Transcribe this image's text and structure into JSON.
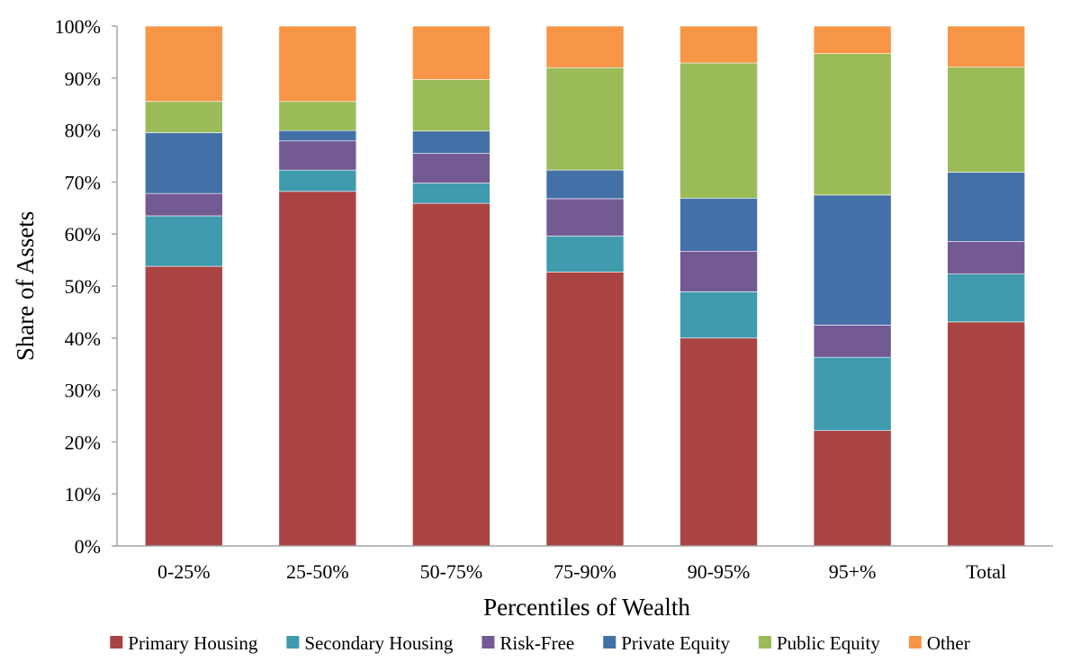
{
  "chart_data": {
    "type": "bar",
    "stacked": true,
    "xlabel": "Percentiles of Wealth",
    "ylabel": "Share  of  Assets",
    "ylim": [
      0,
      100
    ],
    "yticks": [
      "0%",
      "10%",
      "20%",
      "30%",
      "40%",
      "50%",
      "60%",
      "70%",
      "80%",
      "90%",
      "100%"
    ],
    "grid": false,
    "legend_position": "bottom",
    "categories": [
      "0-25%",
      "25-50%",
      "50-75%",
      "75-90%",
      "90-95%",
      "95+%",
      "Total"
    ],
    "series": [
      {
        "name": "Primary Housing",
        "color": "#a94442",
        "values": [
          53.8,
          68.2,
          65.9,
          52.7,
          40.0,
          22.2,
          43.1
        ]
      },
      {
        "name": "Secondary Housing",
        "color": "#3f9bad",
        "values": [
          9.7,
          4.1,
          3.9,
          6.9,
          8.9,
          14.1,
          9.2
        ]
      },
      {
        "name": "Risk-Free",
        "color": "#735a93",
        "values": [
          4.3,
          5.6,
          5.7,
          7.2,
          7.8,
          6.2,
          6.3
        ]
      },
      {
        "name": "Private Equity",
        "color": "#4470a8",
        "values": [
          11.7,
          2.0,
          4.3,
          5.5,
          10.2,
          25.0,
          13.3
        ]
      },
      {
        "name": "Public Equity",
        "color": "#9bbb59",
        "values": [
          6.0,
          5.6,
          9.9,
          19.7,
          26.0,
          27.2,
          20.2
        ]
      },
      {
        "name": "Other",
        "color": "#f79646",
        "values": [
          14.5,
          14.5,
          10.3,
          8.0,
          7.1,
          5.3,
          7.9
        ]
      }
    ]
  }
}
